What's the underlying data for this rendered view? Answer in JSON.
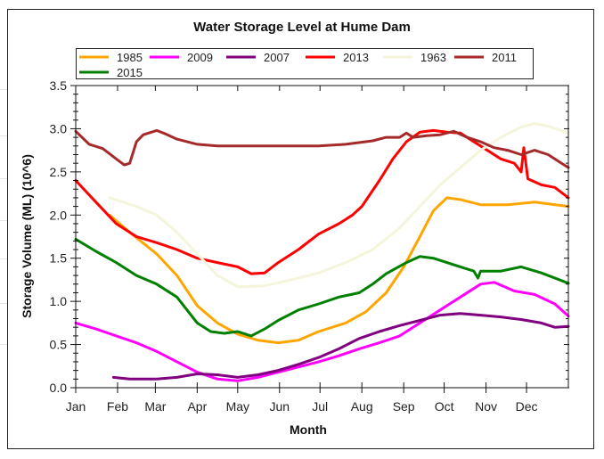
{
  "chart_data": {
    "type": "line",
    "title": "Water Storage Level at Hume Dam",
    "xlabel": "Month",
    "ylabel": "Storage Volume (ML) (10^6)",
    "x_unit": "day-of-year",
    "xlim": [
      0,
      365
    ],
    "ylim": [
      0.0,
      3.5
    ],
    "y_ticks": [
      "0.0",
      "0.5",
      "1.0",
      "1.5",
      "2.0",
      "2.5",
      "3.0",
      "3.5"
    ],
    "y_tick_values": [
      0.0,
      0.5,
      1.0,
      1.5,
      2.0,
      2.5,
      3.0,
      3.5
    ],
    "x_ticks": [
      "Jan",
      "Feb",
      "Mar",
      "Apr",
      "May",
      "Jun",
      "Jul",
      "Aug",
      "Sep",
      "Oct",
      "Nov",
      "Dec"
    ],
    "x_tick_values": [
      0,
      31,
      59,
      90,
      120,
      151,
      181,
      212,
      243,
      273,
      304,
      334
    ],
    "grid": false,
    "legend_position": "top",
    "series": [
      {
        "name": "1985",
        "color": "#FFA500",
        "x": [
          25,
          40,
          60,
          75,
          90,
          105,
          120,
          135,
          150,
          165,
          180,
          200,
          215,
          230,
          243,
          255,
          265,
          275,
          285,
          300,
          320,
          340,
          365
        ],
        "y": [
          2.0,
          1.8,
          1.55,
          1.3,
          0.95,
          0.75,
          0.62,
          0.55,
          0.52,
          0.55,
          0.65,
          0.75,
          0.88,
          1.1,
          1.4,
          1.75,
          2.05,
          2.2,
          2.18,
          2.12,
          2.12,
          2.15,
          2.1
        ]
      },
      {
        "name": "2009",
        "color": "#FF00FF",
        "x": [
          0,
          15,
          30,
          45,
          60,
          75,
          90,
          105,
          120,
          135,
          150,
          165,
          180,
          195,
          210,
          225,
          240,
          255,
          270,
          285,
          300,
          310,
          325,
          340,
          355,
          365
        ],
        "y": [
          0.75,
          0.68,
          0.6,
          0.52,
          0.42,
          0.3,
          0.18,
          0.1,
          0.08,
          0.12,
          0.18,
          0.24,
          0.3,
          0.37,
          0.45,
          0.52,
          0.6,
          0.75,
          0.9,
          1.05,
          1.2,
          1.22,
          1.12,
          1.08,
          0.97,
          0.83
        ]
      },
      {
        "name": "2007",
        "color": "#800080",
        "x": [
          28,
          40,
          60,
          75,
          90,
          105,
          120,
          135,
          150,
          165,
          180,
          195,
          210,
          225,
          240,
          255,
          270,
          285,
          300,
          315,
          330,
          345,
          355,
          365
        ],
        "y": [
          0.12,
          0.1,
          0.1,
          0.12,
          0.16,
          0.15,
          0.12,
          0.15,
          0.2,
          0.27,
          0.35,
          0.45,
          0.57,
          0.65,
          0.72,
          0.78,
          0.84,
          0.86,
          0.84,
          0.82,
          0.79,
          0.75,
          0.7,
          0.71
        ]
      },
      {
        "name": "2013",
        "color": "#FF0000",
        "x": [
          0,
          15,
          30,
          45,
          60,
          75,
          90,
          105,
          120,
          130,
          140,
          150,
          165,
          180,
          195,
          205,
          212,
          225,
          235,
          245,
          255,
          265,
          275,
          285,
          300,
          315,
          325,
          330,
          332,
          335,
          345,
          355,
          365
        ],
        "y": [
          2.4,
          2.15,
          1.9,
          1.75,
          1.68,
          1.6,
          1.5,
          1.45,
          1.4,
          1.32,
          1.33,
          1.45,
          1.6,
          1.78,
          1.9,
          2.0,
          2.1,
          2.4,
          2.65,
          2.85,
          2.96,
          2.98,
          2.96,
          2.95,
          2.8,
          2.65,
          2.6,
          2.5,
          2.78,
          2.42,
          2.35,
          2.32,
          2.2
        ]
      },
      {
        "name": "1963",
        "color": "#F5F5DC",
        "x": [
          25,
          45,
          60,
          75,
          90,
          105,
          120,
          140,
          160,
          180,
          200,
          220,
          240,
          255,
          270,
          285,
          300,
          315,
          330,
          340,
          350,
          365
        ],
        "y": [
          2.2,
          2.1,
          2.0,
          1.8,
          1.55,
          1.3,
          1.17,
          1.18,
          1.25,
          1.33,
          1.45,
          1.6,
          1.85,
          2.1,
          2.35,
          2.55,
          2.75,
          2.9,
          3.02,
          3.06,
          3.03,
          2.95
        ]
      },
      {
        "name": "2011",
        "color": "#A52A2A",
        "x": [
          0,
          10,
          20,
          30,
          36,
          40,
          45,
          50,
          60,
          65,
          75,
          90,
          105,
          120,
          150,
          180,
          200,
          220,
          230,
          240,
          245,
          250,
          260,
          270,
          280,
          290,
          300,
          310,
          320,
          330,
          340,
          350,
          360,
          365
        ],
        "y": [
          2.97,
          2.82,
          2.77,
          2.65,
          2.58,
          2.6,
          2.85,
          2.93,
          2.98,
          2.95,
          2.88,
          2.82,
          2.8,
          2.8,
          2.8,
          2.8,
          2.82,
          2.86,
          2.9,
          2.9,
          2.95,
          2.9,
          2.92,
          2.93,
          2.97,
          2.9,
          2.85,
          2.78,
          2.75,
          2.7,
          2.75,
          2.7,
          2.6,
          2.55
        ]
      },
      {
        "name": "2015",
        "color": "#008000",
        "x": [
          0,
          15,
          30,
          45,
          60,
          75,
          90,
          100,
          110,
          120,
          130,
          140,
          150,
          165,
          180,
          195,
          210,
          220,
          230,
          245,
          255,
          265,
          275,
          285,
          295,
          298,
          300,
          315,
          330,
          345,
          365
        ],
        "y": [
          1.72,
          1.58,
          1.45,
          1.3,
          1.2,
          1.05,
          0.75,
          0.65,
          0.63,
          0.65,
          0.6,
          0.68,
          0.78,
          0.9,
          0.97,
          1.05,
          1.1,
          1.2,
          1.32,
          1.45,
          1.52,
          1.5,
          1.45,
          1.4,
          1.35,
          1.27,
          1.35,
          1.35,
          1.4,
          1.33,
          1.21
        ]
      }
    ]
  }
}
